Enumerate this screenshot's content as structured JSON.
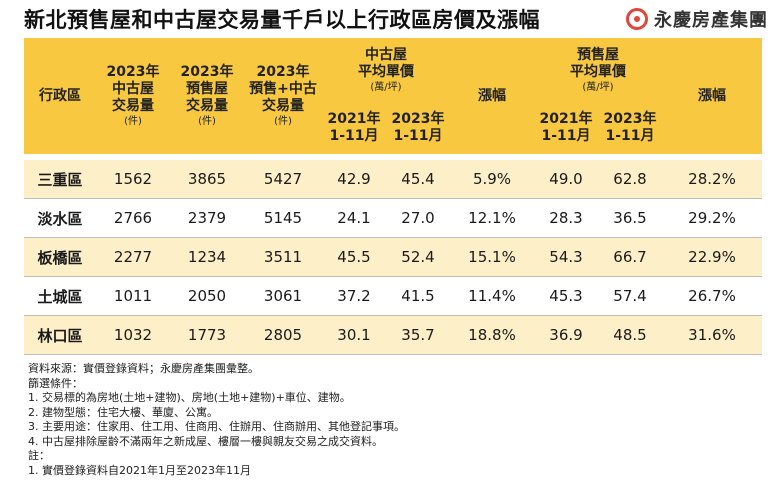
{
  "title": "新北預售屋和中古屋交易量千戶以上行政區房價及漲幅",
  "brand": "永慶房產集團",
  "brand_color": "#e2453a",
  "header_color": "#f8c840",
  "band_color": "#fdefc8",
  "table": {
    "headers": {
      "district": "行政區",
      "used_volume": {
        "line1": "2023年",
        "line2": "中古屋",
        "line3": "交易量",
        "unit": "(件)"
      },
      "presale_volume": {
        "line1": "2023年",
        "line2": "預售屋",
        "line3": "交易量",
        "unit": "(件)"
      },
      "total_volume": {
        "line1": "2023年",
        "line2": "預售+中古",
        "line3": "交易量",
        "unit": "(件)"
      },
      "used_price": {
        "line1": "中古屋",
        "line2": "平均單價",
        "unit": "(萬/坪)"
      },
      "used_growth": "漲幅",
      "presale_price": {
        "line1": "預售屋",
        "line2": "平均單價",
        "unit": "(萬/坪)"
      },
      "presale_growth": "漲幅",
      "period_2021": {
        "year": "2021年",
        "months": "1-11月"
      },
      "period_2023": {
        "year": "2023年",
        "months": "1-11月"
      }
    },
    "rows": [
      {
        "district": "三重區",
        "used_volume": "1562",
        "presale_volume": "3865",
        "total_volume": "5427",
        "used_2021": "42.9",
        "used_2023": "45.4",
        "used_growth": "5.9%",
        "presale_2021": "49.0",
        "presale_2023": "62.8",
        "presale_growth": "28.2%"
      },
      {
        "district": "淡水區",
        "used_volume": "2766",
        "presale_volume": "2379",
        "total_volume": "5145",
        "used_2021": "24.1",
        "used_2023": "27.0",
        "used_growth": "12.1%",
        "presale_2021": "28.3",
        "presale_2023": "36.5",
        "presale_growth": "29.2%"
      },
      {
        "district": "板橋區",
        "used_volume": "2277",
        "presale_volume": "1234",
        "total_volume": "3511",
        "used_2021": "45.5",
        "used_2023": "52.4",
        "used_growth": "15.1%",
        "presale_2021": "54.3",
        "presale_2023": "66.7",
        "presale_growth": "22.9%"
      },
      {
        "district": "土城區",
        "used_volume": "1011",
        "presale_volume": "2050",
        "total_volume": "3061",
        "used_2021": "37.2",
        "used_2023": "41.5",
        "used_growth": "11.4%",
        "presale_2021": "45.3",
        "presale_2023": "57.4",
        "presale_growth": "26.7%"
      },
      {
        "district": "林口區",
        "used_volume": "1032",
        "presale_volume": "1773",
        "total_volume": "2805",
        "used_2021": "30.1",
        "used_2023": "35.7",
        "used_growth": "18.8%",
        "presale_2021": "36.9",
        "presale_2023": "48.5",
        "presale_growth": "31.6%"
      }
    ]
  },
  "notes": [
    "資料來源：實價登錄資料；永慶房產集團彙整。",
    "篩選條件：",
    "1. 交易標的為房地(土地+建物)、房地(土地+建物)+車位、建物。",
    "2. 建物型態：住宅大樓、華廈、公寓。",
    "3. 主要用途：住家用、住工用、住商用、住辦用、住商辦用、其他登記事項。",
    "4. 中古屋排除屋齡不滿兩年之新成屋、樓層一樓與親友交易之成交資料。",
    "註：",
    "1. 實價登錄資料自2021年1月至2023年11月"
  ]
}
